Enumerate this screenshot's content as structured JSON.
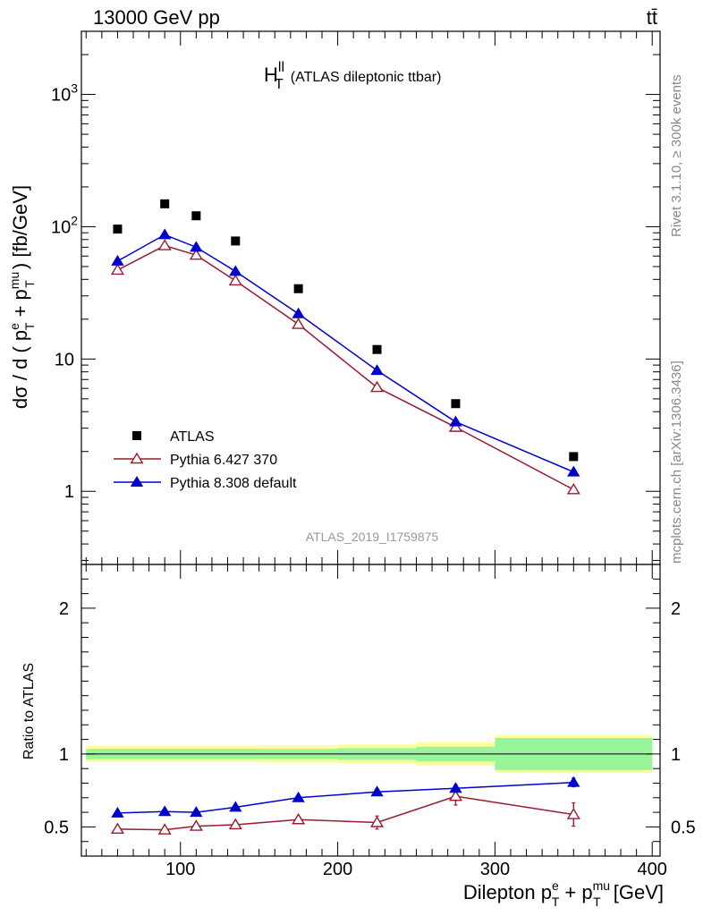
{
  "header": {
    "left": "13000 GeV pp",
    "right": "tt̄"
  },
  "side_labels": {
    "rivet": "Rivet 3.1.10, ≥ 300k events",
    "mcplots": "mcplots.cern.ch [arXiv:1306.3436]"
  },
  "analysis_id": "ATLAS_2019_I1759875",
  "chart_data": [
    {
      "type": "scatter",
      "panel": "main",
      "title": "H_T^ll (ATLAS dileptonic ttbar)",
      "title_main": "H",
      "title_sup": "ll",
      "title_sub": "T",
      "title_rest": "(ATLAS dileptonic ttbar)",
      "ylabel": "dσ / d ( p_T^e + p_T^mu ) [fb/GeV]",
      "yscale": "log",
      "ylim": [
        0.28,
        3000
      ],
      "xlim": [
        37,
        405
      ],
      "yticks": [
        {
          "v": 1000,
          "label": "10",
          "exp": "3"
        },
        {
          "v": 100,
          "label": "10",
          "exp": "2"
        },
        {
          "v": 10,
          "label": "10",
          "exp": ""
        },
        {
          "v": 1,
          "label": "1",
          "exp": ""
        }
      ],
      "legend_position": "bottom-left",
      "series": [
        {
          "name": "ATLAS",
          "color": "#000000",
          "marker": "square",
          "x": [
            60,
            90,
            110,
            135,
            175,
            225,
            275,
            350
          ],
          "y": [
            96,
            149,
            121,
            78,
            34,
            11.8,
            4.6,
            1.83
          ]
        },
        {
          "name": "Pythia 6.427 370",
          "color": "#9a1a2e",
          "marker": "open-triangle",
          "x": [
            60,
            90,
            110,
            135,
            175,
            225,
            275,
            350
          ],
          "y": [
            47,
            72,
            61,
            39,
            18.3,
            6.1,
            3.05,
            1.03
          ]
        },
        {
          "name": "Pythia 8.308 default",
          "color": "#0000cc",
          "marker": "filled-triangle",
          "x": [
            60,
            90,
            110,
            135,
            175,
            225,
            275,
            350
          ],
          "y": [
            55,
            87,
            70,
            46,
            22,
            8.2,
            3.35,
            1.4
          ]
        }
      ]
    },
    {
      "type": "scatter",
      "panel": "ratio",
      "ylabel": "Ratio to ATLAS",
      "xlabel": "Dilepton p_T^e + p_T^mu [GeV]",
      "xlabel_parts": {
        "main": "Dilepton p",
        "e": "e",
        "T": "T",
        "plus": " + p",
        "mu": "mu",
        "unit": " [GeV]"
      },
      "ylim": [
        0.3,
        2.3
      ],
      "xlim": [
        37,
        405
      ],
      "yticks": [
        0.5,
        1,
        2
      ],
      "xticks": [
        100,
        200,
        300,
        400
      ],
      "bands": {
        "edges": [
          40,
          80,
          100,
          120,
          150,
          200,
          250,
          300,
          400
        ],
        "inner": [
          0.035,
          0.035,
          0.035,
          0.035,
          0.035,
          0.04,
          0.05,
          0.11
        ],
        "outer": [
          0.055,
          0.055,
          0.055,
          0.055,
          0.06,
          0.065,
          0.08,
          0.13
        ]
      },
      "series": [
        {
          "name": "Pythia 6.427 370",
          "color": "#9a1a2e",
          "marker": "open-triangle",
          "x": [
            60,
            90,
            110,
            135,
            175,
            225,
            275,
            350
          ],
          "y": [
            0.485,
            0.48,
            0.505,
            0.515,
            0.55,
            0.53,
            0.71,
            0.585
          ],
          "err": [
            0.01,
            0.012,
            0.015,
            0.018,
            0.022,
            0.045,
            0.06,
            0.08
          ]
        },
        {
          "name": "Pythia 8.308 default",
          "color": "#0000cc",
          "marker": "filled-triangle",
          "x": [
            60,
            90,
            110,
            135,
            175,
            225,
            275,
            350
          ],
          "y": [
            0.595,
            0.605,
            0.6,
            0.635,
            0.7,
            0.74,
            0.765,
            0.805
          ],
          "err": [
            0.005,
            0.005,
            0.006,
            0.007,
            0.01,
            0.012,
            0.025,
            0.03
          ]
        }
      ]
    }
  ]
}
